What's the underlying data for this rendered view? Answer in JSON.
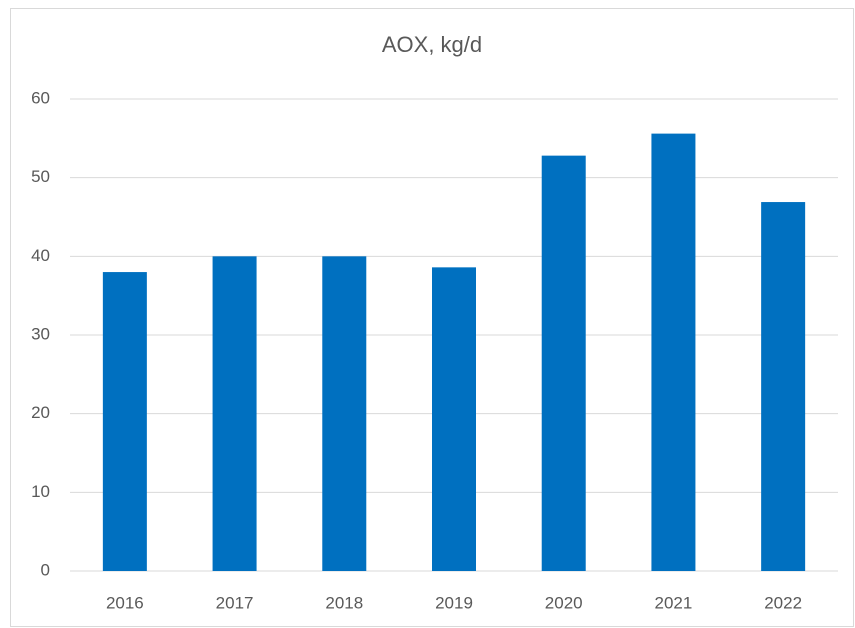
{
  "chart_data": {
    "type": "bar",
    "title": "AOX, kg/d",
    "categories": [
      "2016",
      "2017",
      "2018",
      "2019",
      "2020",
      "2021",
      "2022"
    ],
    "values": [
      38,
      40,
      40,
      38.6,
      52.8,
      55.6,
      46.9
    ],
    "color": "#0070c0",
    "ylim": [
      0,
      60
    ],
    "yticks": [
      0,
      10,
      20,
      30,
      40,
      50,
      60
    ],
    "grid": true
  }
}
